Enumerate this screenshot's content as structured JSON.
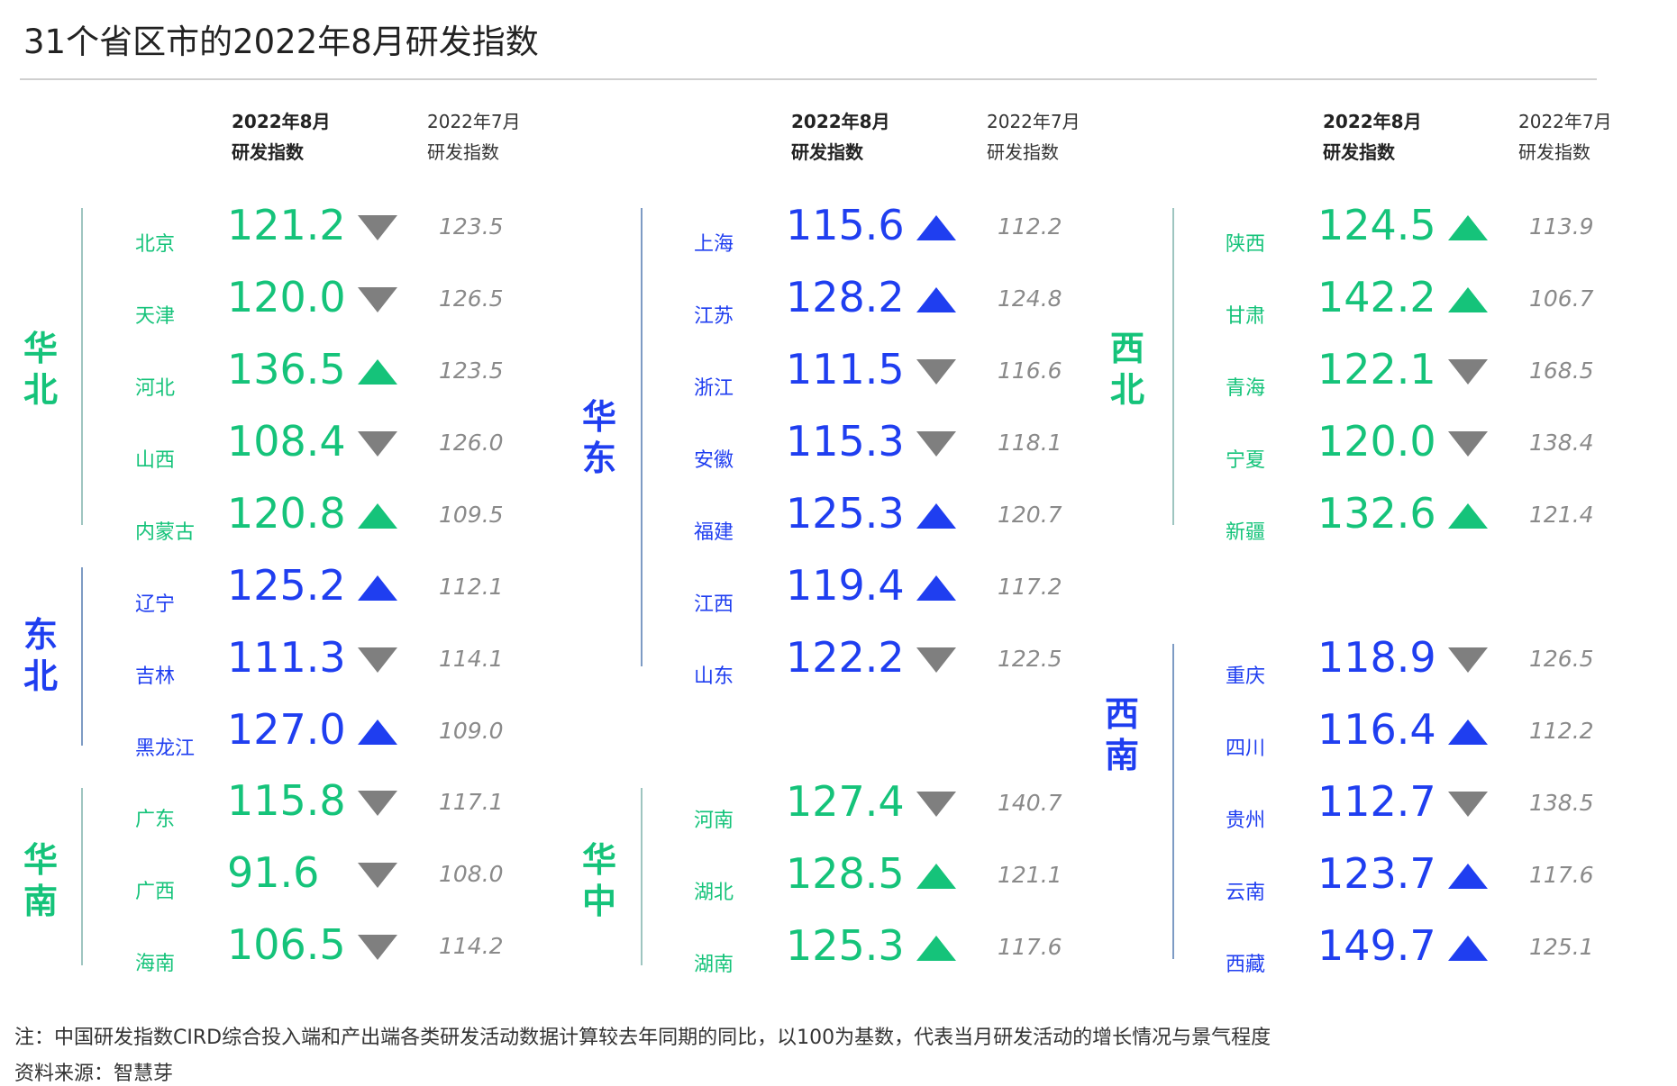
{
  "title": "31个省区市的2022年8月研发指数",
  "header": {
    "aug_line1": "2022年8月",
    "aug_line2": "研发指数",
    "jul_line1": "2022年7月",
    "jul_line2": "研发指数"
  },
  "colors": {
    "green": "#15c37a",
    "blue": "#1f3ef0",
    "gray": "#7f7f7f"
  },
  "regions": {
    "huabei": {
      "c1": "华",
      "c2": "北",
      "color": "green",
      "rows": [
        {
          "province": "北京",
          "aug": "121.2",
          "dir": "down",
          "jul": "123.5"
        },
        {
          "province": "天津",
          "aug": "120.0",
          "dir": "down",
          "jul": "126.5"
        },
        {
          "province": "河北",
          "aug": "136.5",
          "dir": "up",
          "jul": "123.5"
        },
        {
          "province": "山西",
          "aug": "108.4",
          "dir": "down",
          "jul": "126.0"
        },
        {
          "province": "内蒙古",
          "aug": "120.8",
          "dir": "up",
          "jul": "109.5"
        }
      ]
    },
    "dongbei": {
      "c1": "东",
      "c2": "北",
      "color": "blue",
      "rows": [
        {
          "province": "辽宁",
          "aug": "125.2",
          "dir": "up",
          "jul": "112.1"
        },
        {
          "province": "吉林",
          "aug": "111.3",
          "dir": "down",
          "jul": "114.1"
        },
        {
          "province": "黑龙江",
          "aug": "127.0",
          "dir": "up",
          "jul": "109.0"
        }
      ]
    },
    "huanan": {
      "c1": "华",
      "c2": "南",
      "color": "green",
      "rows": [
        {
          "province": "广东",
          "aug": "115.8",
          "dir": "down",
          "jul": "117.1"
        },
        {
          "province": "广西",
          "aug": "91.6",
          "dir": "down",
          "jul": "108.0"
        },
        {
          "province": "海南",
          "aug": "106.5",
          "dir": "down",
          "jul": "114.2"
        }
      ]
    },
    "huadong": {
      "c1": "华",
      "c2": "东",
      "color": "blue",
      "rows": [
        {
          "province": "上海",
          "aug": "115.6",
          "dir": "up",
          "jul": "112.2"
        },
        {
          "province": "江苏",
          "aug": "128.2",
          "dir": "up",
          "jul": "124.8"
        },
        {
          "province": "浙江",
          "aug": "111.5",
          "dir": "down",
          "jul": "116.6"
        },
        {
          "province": "安徽",
          "aug": "115.3",
          "dir": "down",
          "jul": "118.1"
        },
        {
          "province": "福建",
          "aug": "125.3",
          "dir": "up",
          "jul": "120.7"
        },
        {
          "province": "江西",
          "aug": "119.4",
          "dir": "up",
          "jul": "117.2"
        },
        {
          "province": "山东",
          "aug": "122.2",
          "dir": "down",
          "jul": "122.5"
        }
      ]
    },
    "huazhong": {
      "c1": "华",
      "c2": "中",
      "color": "green",
      "rows": [
        {
          "province": "河南",
          "aug": "127.4",
          "dir": "down",
          "jul": "140.7"
        },
        {
          "province": "湖北",
          "aug": "128.5",
          "dir": "up",
          "jul": "121.1"
        },
        {
          "province": "湖南",
          "aug": "125.3",
          "dir": "up",
          "jul": "117.6"
        }
      ]
    },
    "xibei": {
      "c1": "西",
      "c2": "北",
      "color": "green",
      "rows": [
        {
          "province": "陕西",
          "aug": "124.5",
          "dir": "up",
          "jul": "113.9"
        },
        {
          "province": "甘肃",
          "aug": "142.2",
          "dir": "up",
          "jul": "106.7"
        },
        {
          "province": "青海",
          "aug": "122.1",
          "dir": "down",
          "jul": "168.5"
        },
        {
          "province": "宁夏",
          "aug": "120.0",
          "dir": "down",
          "jul": "138.4"
        },
        {
          "province": "新疆",
          "aug": "132.6",
          "dir": "up",
          "jul": "121.4"
        }
      ]
    },
    "xinan": {
      "c1": "西",
      "c2": "南",
      "color": "blue",
      "rows": [
        {
          "province": "重庆",
          "aug": "118.9",
          "dir": "down",
          "jul": "126.5"
        },
        {
          "province": "四川",
          "aug": "116.4",
          "dir": "up",
          "jul": "112.2"
        },
        {
          "province": "贵州",
          "aug": "112.7",
          "dir": "down",
          "jul": "138.5"
        },
        {
          "province": "云南",
          "aug": "123.7",
          "dir": "up",
          "jul": "117.6"
        },
        {
          "province": "西藏",
          "aug": "149.7",
          "dir": "up",
          "jul": "125.1"
        }
      ]
    }
  },
  "footer": {
    "note": "注：中国研发指数CIRD综合投入端和产出端各类研发活动数据计算较去年同期的同比，以100为基数，代表当月研发活动的增长情况与景气程度",
    "source": "资料来源：智慧芽"
  }
}
